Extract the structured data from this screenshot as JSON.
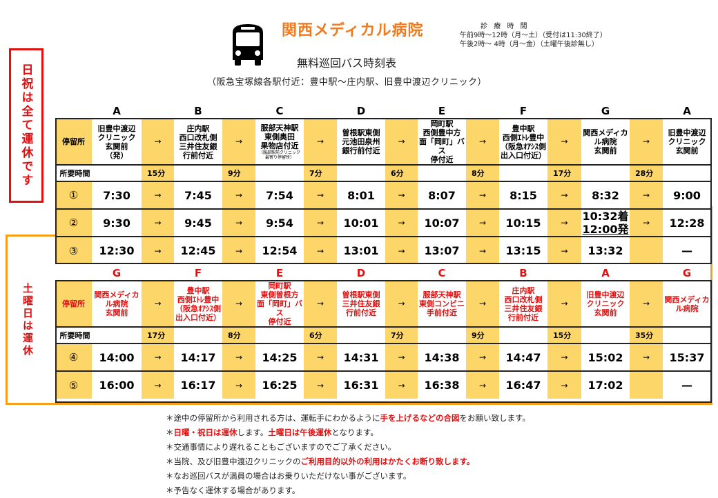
{
  "header": {
    "hospital_name": "関西メディカル病院",
    "subtitle": "無料巡回バス時刻表",
    "route": "（阪急宝塚線各駅付近：豊中駅～庄内駅、旧豊中渡辺クリニック）",
    "bus_icon": "bus-icon"
  },
  "hours": {
    "heading": "診 療 時 間",
    "morning": "午前9時～12時（月～土）（受付は11:30終了）",
    "afternoon": "午後2時～ 4時（月～金）（土曜午後診無し）"
  },
  "side_labels": {
    "holiday": "日祝は全て運休です",
    "saturday": "土曜日は運休"
  },
  "labels": {
    "stop": "停留所",
    "duration": "所要時間",
    "arrow": "→",
    "dash": "—"
  },
  "morning_table": {
    "letters": [
      "A",
      "B",
      "C",
      "D",
      "E",
      "F",
      "G",
      "A"
    ],
    "stops": [
      {
        "lines": [
          "旧豊中渡辺",
          "クリニック",
          "玄関前",
          "（発）"
        ]
      },
      {
        "lines": [
          "庄内駅",
          "西口改札側",
          "三井住友銀",
          "行前付近"
        ]
      },
      {
        "lines": [
          "服部天神駅",
          "東側奥田",
          "果物店付近"
        ],
        "note": [
          "（服部駅前クリニック",
          "最寄り停留所）"
        ]
      },
      {
        "lines": [
          "曽根駅東側",
          "元池田泉州",
          "銀行前付近"
        ]
      },
      {
        "lines": [
          "岡町駅",
          "西側豊中方",
          "面「岡町」バス",
          "停付近"
        ]
      },
      {
        "lines": [
          "豊中駅",
          "西側ｴﾄﾚ豊中",
          "（阪急ｵｱｼｽ側",
          "出入口付近）"
        ]
      },
      {
        "lines": [
          "関西メディカ",
          "ル病院",
          "玄関前"
        ]
      },
      {
        "lines": [
          "旧豊中渡辺",
          "クリニック",
          "玄関前"
        ]
      }
    ],
    "durations": [
      "15分",
      "9分",
      "7分",
      "6分",
      "8分",
      "17分",
      "28分"
    ],
    "runs": [
      {
        "no": "①",
        "times": [
          "7:30",
          "7:45",
          "7:54",
          "8:01",
          "8:07",
          "8:15",
          "8:32",
          "9:00"
        ]
      },
      {
        "no": "②",
        "times": [
          "9:30",
          "9:45",
          "9:54",
          "10:01",
          "10:07",
          "10:15",
          "10:32着|12:00発",
          "12:28"
        ]
      },
      {
        "no": "③",
        "times": [
          "12:30",
          "12:45",
          "12:54",
          "13:01",
          "13:07",
          "13:15",
          "13:32",
          "—"
        ]
      }
    ]
  },
  "afternoon_table": {
    "letters": [
      "G",
      "F",
      "E",
      "D",
      "C",
      "B",
      "A",
      "G"
    ],
    "stops": [
      {
        "lines": [
          "関西メディカ",
          "ル病院",
          "玄関前"
        ]
      },
      {
        "lines": [
          "豊中駅",
          "西側ｴﾄﾚ豊中",
          "（阪急ｵｱｼｽ側",
          "出入口付近）"
        ]
      },
      {
        "lines": [
          "岡町駅",
          "東側曽根方",
          "面「岡町」バス",
          "停付近"
        ]
      },
      {
        "lines": [
          "曽根駅東側",
          "三井住友銀",
          "行前付近"
        ]
      },
      {
        "lines": [
          "服部天神駅",
          "東側コンビニ",
          "手前付近"
        ]
      },
      {
        "lines": [
          "庄内駅",
          "西口改札側",
          "三井住友銀",
          "行前付近"
        ]
      },
      {
        "lines": [
          "旧豊中渡辺",
          "クリニック",
          "玄関前"
        ]
      },
      {
        "lines": [
          "関西メディカ",
          "ル病院"
        ]
      }
    ],
    "durations": [
      "17分",
      "8分",
      "6分",
      "7分",
      "9分",
      "15分",
      "35分"
    ],
    "runs": [
      {
        "no": "④",
        "times": [
          "14:00",
          "14:17",
          "14:25",
          "14:31",
          "14:38",
          "14:47",
          "15:02",
          "15:37"
        ]
      },
      {
        "no": "⑤",
        "times": [
          "16:00",
          "16:17",
          "16:25",
          "16:31",
          "16:38",
          "16:47",
          "17:02",
          "—"
        ]
      }
    ]
  },
  "notes": [
    [
      {
        "t": "＊途中の停留所から利用される方は、運転手にわかるように"
      },
      {
        "t": "手を上げるなどの合図",
        "red": true
      },
      {
        "t": "をお願い致します。"
      }
    ],
    [
      {
        "t": "＊"
      },
      {
        "t": "日曜・祝日は運休",
        "red": true
      },
      {
        "t": "します。"
      },
      {
        "t": "土曜日は午後運休",
        "red": true
      },
      {
        "t": "となります。"
      }
    ],
    [
      {
        "t": "＊交通事情により遅れることもございますのでご了承ください。"
      }
    ],
    [
      {
        "t": "＊当院、及び旧豊中渡辺クリニックの"
      },
      {
        "t": "ご利用目的以外の利用はかたくお断り致します。",
        "red": true
      }
    ],
    [
      {
        "t": "＊なお巡回バスが満員の場合はお乗りいただけない事がございます。"
      }
    ],
    [
      {
        "t": "＊予告なく運休する場合があります。"
      }
    ]
  ],
  "colors": {
    "title_orange": "#f07a1e",
    "cell_yellow": "#fdd66a",
    "saturday_outline": "#f6a01a",
    "alert_red": "#e01010"
  }
}
